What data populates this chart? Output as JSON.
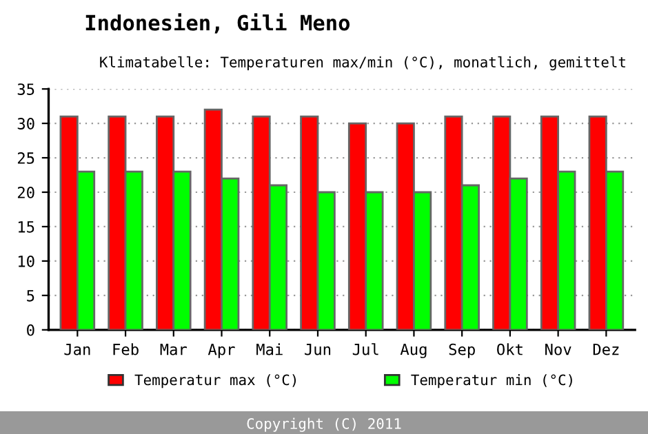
{
  "chart_data": {
    "type": "bar",
    "title": "Indonesien, Gili Meno",
    "subtitle": "Klimatabelle: Temperaturen max/min (°C), monatlich, gemittelt",
    "categories": [
      "Jan",
      "Feb",
      "Mar",
      "Apr",
      "Mai",
      "Jun",
      "Jul",
      "Aug",
      "Sep",
      "Okt",
      "Nov",
      "Dez"
    ],
    "series": [
      {
        "name": "Temperatur max (°C)",
        "color": "#ff0000",
        "values": [
          31,
          31,
          31,
          32,
          31,
          31,
          30,
          30,
          31,
          31,
          31,
          31
        ]
      },
      {
        "name": "Temperatur min (°C)",
        "color": "#00ff00",
        "values": [
          23,
          23,
          23,
          22,
          21,
          20,
          20,
          20,
          21,
          22,
          23,
          23
        ]
      }
    ],
    "ylim": [
      0,
      35
    ],
    "yticks": [
      0,
      5,
      10,
      15,
      20,
      25,
      30,
      35
    ],
    "grid": "y",
    "legend": "bottom",
    "annotations": [
      "Copyright (C) 2011"
    ]
  }
}
